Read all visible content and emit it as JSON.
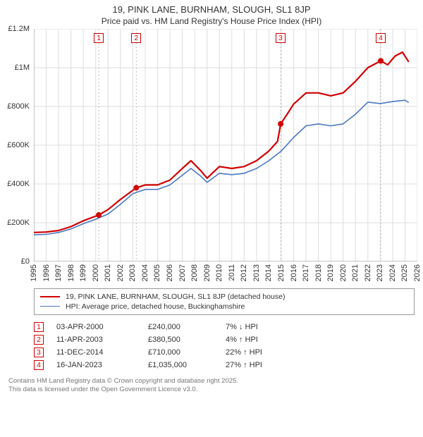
{
  "title_line1": "19, PINK LANE, BURNHAM, SLOUGH, SL1 8JP",
  "title_line2": "Price paid vs. HM Land Registry's House Price Index (HPI)",
  "chart": {
    "type": "line",
    "background_color": "#ffffff",
    "grid_color": "#dddddd",
    "axis_color": "#888888",
    "x": {
      "min": 1995,
      "max": 2026,
      "tick_step": 1
    },
    "y": {
      "min": 0,
      "max": 1200000,
      "tick_step": 200000,
      "tick_labels": [
        "£0",
        "£200K",
        "£400K",
        "£600K",
        "£800K",
        "£1M",
        "£1.2M"
      ]
    },
    "series": [
      {
        "id": "price_paid",
        "label": "19, PINK LANE, BURNHAM, SLOUGH, SL1 8JP (detached house)",
        "color": "#d00000",
        "line_width": 2.2,
        "points": [
          [
            1995.0,
            150000
          ],
          [
            1996.0,
            152000
          ],
          [
            1997.0,
            160000
          ],
          [
            1998.0,
            180000
          ],
          [
            1999.0,
            210000
          ],
          [
            2000.25,
            240000
          ],
          [
            2001.0,
            268000
          ],
          [
            2002.0,
            320000
          ],
          [
            2003.28,
            380500
          ],
          [
            2004.0,
            395000
          ],
          [
            2005.0,
            395000
          ],
          [
            2006.0,
            420000
          ],
          [
            2007.0,
            480000
          ],
          [
            2007.7,
            520000
          ],
          [
            2008.5,
            468000
          ],
          [
            2009.0,
            430000
          ],
          [
            2010.0,
            490000
          ],
          [
            2011.0,
            480000
          ],
          [
            2012.0,
            490000
          ],
          [
            2013.0,
            520000
          ],
          [
            2014.0,
            570000
          ],
          [
            2014.7,
            620000
          ],
          [
            2014.95,
            710000
          ],
          [
            2015.5,
            762000
          ],
          [
            2016.0,
            812000
          ],
          [
            2017.0,
            870000
          ],
          [
            2018.0,
            870000
          ],
          [
            2019.0,
            855000
          ],
          [
            2020.0,
            870000
          ],
          [
            2021.0,
            930000
          ],
          [
            2022.0,
            1000000
          ],
          [
            2023.04,
            1035000
          ],
          [
            2023.6,
            1015000
          ],
          [
            2024.2,
            1060000
          ],
          [
            2024.8,
            1080000
          ],
          [
            2025.3,
            1030000
          ]
        ]
      },
      {
        "id": "hpi",
        "label": "HPI: Average price, detached house, Buckinghamshire",
        "color": "#4a78c0",
        "line_width": 1.6,
        "points": [
          [
            1995.0,
            138000
          ],
          [
            1996.0,
            140000
          ],
          [
            1997.0,
            150000
          ],
          [
            1998.0,
            168000
          ],
          [
            1999.0,
            195000
          ],
          [
            2000.0,
            218000
          ],
          [
            2001.0,
            245000
          ],
          [
            2002.0,
            295000
          ],
          [
            2003.0,
            350000
          ],
          [
            2004.0,
            372000
          ],
          [
            2005.0,
            372000
          ],
          [
            2006.0,
            395000
          ],
          [
            2007.0,
            445000
          ],
          [
            2007.7,
            480000
          ],
          [
            2008.5,
            440000
          ],
          [
            2009.0,
            408000
          ],
          [
            2010.0,
            455000
          ],
          [
            2011.0,
            448000
          ],
          [
            2012.0,
            455000
          ],
          [
            2013.0,
            480000
          ],
          [
            2014.0,
            520000
          ],
          [
            2015.0,
            570000
          ],
          [
            2016.0,
            640000
          ],
          [
            2017.0,
            700000
          ],
          [
            2018.0,
            710000
          ],
          [
            2019.0,
            700000
          ],
          [
            2020.0,
            710000
          ],
          [
            2021.0,
            760000
          ],
          [
            2022.0,
            822000
          ],
          [
            2023.0,
            815000
          ],
          [
            2024.0,
            825000
          ],
          [
            2025.0,
            832000
          ],
          [
            2025.3,
            820000
          ]
        ]
      }
    ],
    "sale_markers": [
      {
        "n": "1",
        "year": 2000.25,
        "price": 240000,
        "color": "#d00000"
      },
      {
        "n": "2",
        "year": 2003.28,
        "price": 380500,
        "color": "#d00000"
      },
      {
        "n": "3",
        "year": 2014.95,
        "price": 710000,
        "color": "#d00000"
      },
      {
        "n": "4",
        "year": 2023.04,
        "price": 1035000,
        "color": "#d00000"
      }
    ],
    "marker_radius": 4,
    "label_fontsize": 11
  },
  "legend": {
    "border_color": "#999999",
    "items": [
      {
        "color": "#d00000",
        "width": 2.2,
        "label": "19, PINK LANE, BURNHAM, SLOUGH, SL1 8JP (detached house)"
      },
      {
        "color": "#4a78c0",
        "width": 1.6,
        "label": "HPI: Average price, detached house, Buckinghamshire"
      }
    ]
  },
  "sales_table": {
    "rows": [
      {
        "n": "1",
        "color": "#d00000",
        "date": "03-APR-2000",
        "price": "£240,000",
        "delta": "7% ↓ HPI"
      },
      {
        "n": "2",
        "color": "#d00000",
        "date": "11-APR-2003",
        "price": "£380,500",
        "delta": "4% ↑ HPI"
      },
      {
        "n": "3",
        "color": "#d00000",
        "date": "11-DEC-2014",
        "price": "£710,000",
        "delta": "22% ↑ HPI"
      },
      {
        "n": "4",
        "color": "#d00000",
        "date": "16-JAN-2023",
        "price": "£1,035,000",
        "delta": "27% ↑ HPI"
      }
    ]
  },
  "footer_line1": "Contains HM Land Registry data © Crown copyright and database right 2025.",
  "footer_line2": "This data is licensed under the Open Government Licence v3.0."
}
